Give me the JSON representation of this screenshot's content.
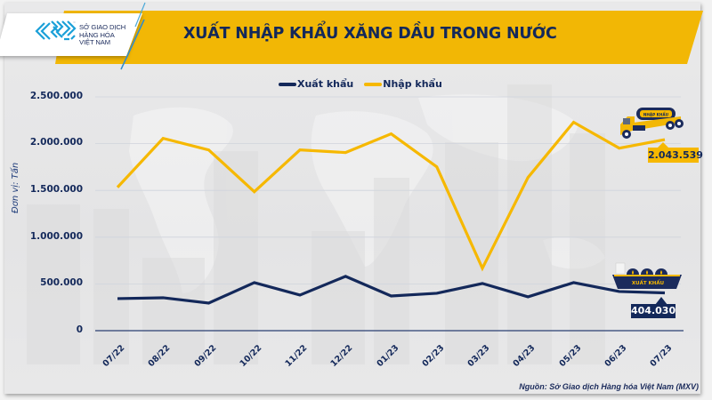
{
  "header": {
    "title": "XUẤT NHẬP KHẨU XĂNG DẦU TRONG NƯỚC",
    "logo": {
      "line1": "SỞ GIAO DỊCH",
      "line2": "HÀNG HÓA",
      "line3": "VIỆT NAM",
      "icon": "mxv-logo-icon"
    }
  },
  "colors": {
    "export": "#13285a",
    "import": "#f6b800",
    "banner": "#f2b705",
    "text": "#13285a"
  },
  "legend": [
    {
      "label": "Xuất khẩu",
      "color": "#13285a"
    },
    {
      "label": "Nhập khẩu",
      "color": "#f6b800"
    }
  ],
  "axis": {
    "y_unit": "Đơn vị: Tấn",
    "y_ticks": [
      "2.500.000",
      "2.000.000",
      "1.500.000",
      "1.000.000",
      "500.000",
      "0"
    ],
    "x_ticks": [
      "07/22",
      "08/22",
      "09/22",
      "10/22",
      "11/22",
      "12/22",
      "01/23",
      "02/23",
      "03/23",
      "04/23",
      "05/23",
      "06/23",
      "07/23"
    ]
  },
  "callouts": {
    "import_last": "2.043.539",
    "import_icon_label": "NHẬP KHẨU",
    "export_last": "404.030",
    "export_icon_label": "XUẤT KHẨU"
  },
  "source": "Nguồn: Sở Giao dịch Hàng hóa Việt Nam (MXV)",
  "chart_data": {
    "type": "line",
    "title": "XUẤT NHẬP KHẨU XĂNG DẦU TRONG NƯỚC",
    "xlabel": "",
    "ylabel": "Đơn vị: Tấn",
    "ylim": [
      0,
      2500000
    ],
    "grid": true,
    "legend_position": "top",
    "categories": [
      "07/22",
      "08/22",
      "09/22",
      "10/22",
      "11/22",
      "12/22",
      "01/23",
      "02/23",
      "03/23",
      "04/23",
      "05/23",
      "06/23",
      "07/23"
    ],
    "series": [
      {
        "name": "Xuất khẩu",
        "color": "#13285a",
        "values": [
          343000,
          352000,
          295000,
          514000,
          381000,
          581000,
          371000,
          400000,
          505000,
          362000,
          514000,
          419000,
          404030
        ]
      },
      {
        "name": "Nhập khẩu",
        "color": "#f6b800",
        "values": [
          1533000,
          2057000,
          1933000,
          1486000,
          1933000,
          1905000,
          2105000,
          1752000,
          667000,
          1638000,
          2229000,
          1952000,
          2043539
        ]
      }
    ],
    "annotations": [
      {
        "series": "Nhập khẩu",
        "x": "07/23",
        "text": "2.043.539"
      },
      {
        "series": "Xuất khẩu",
        "x": "07/23",
        "text": "404.030"
      }
    ],
    "source": "Nguồn: Sở Giao dịch Hàng hóa Việt Nam (MXV)"
  }
}
